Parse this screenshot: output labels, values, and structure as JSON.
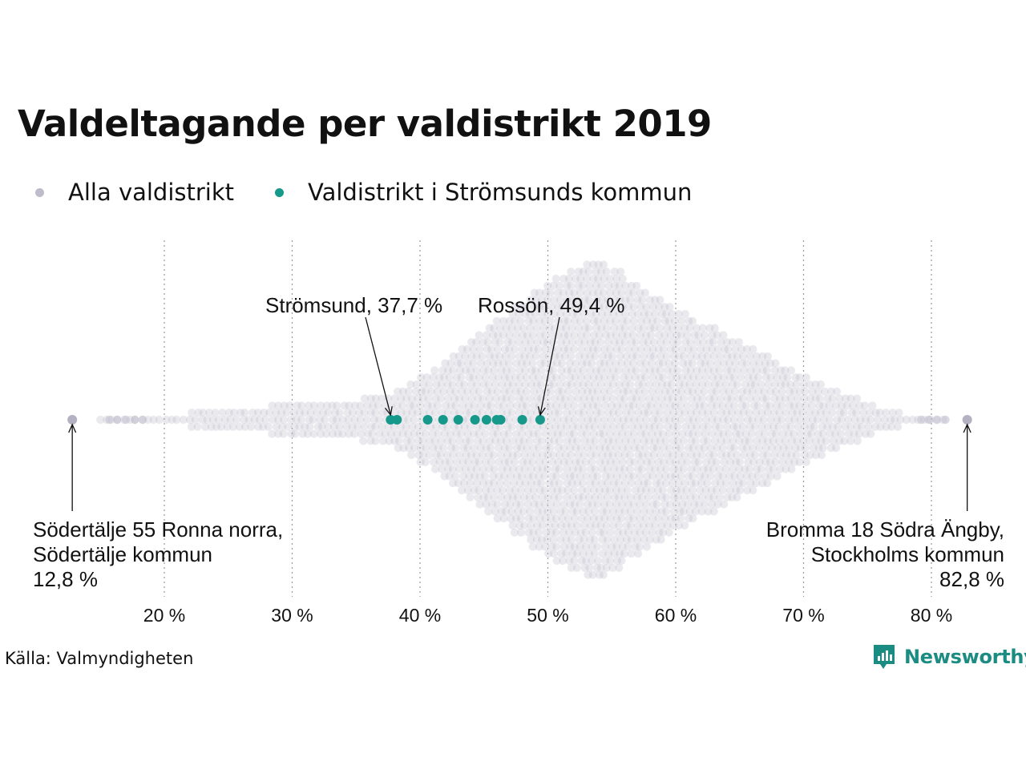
{
  "title": "Valdeltagande per valdistrikt 2019",
  "legend": [
    {
      "label": "Alla valdistrikt",
      "color": "#bdbccb"
    },
    {
      "label": "Valdistrikt i Strömsunds kommun",
      "color": "#16988b"
    }
  ],
  "annotations": {
    "stromsund": "Strömsund, 37,7 %",
    "rosson": "Rossön, 49,4 %",
    "min": {
      "line1": "Södertälje 55 Ronna norra,",
      "line2": "Södertälje kommun",
      "line3": "12,8 %"
    },
    "max": {
      "line1": "Bromma 18 Södra Ängby,",
      "line2": "Stockholms kommun",
      "line3": "82,8 %"
    }
  },
  "source": "Källa: Valmyndigheten",
  "brand": {
    "name": "Newsworthy",
    "icon": "newsworthy-logo-icon",
    "color": "#1a8c82"
  },
  "chart_data": {
    "type": "scatter",
    "subtype": "beeswarm",
    "x_ticks": [
      20,
      30,
      40,
      50,
      60,
      70,
      80
    ],
    "x_tick_labels": [
      "20 %",
      "30 %",
      "40 %",
      "50 %",
      "60 %",
      "70 %",
      "80 %"
    ],
    "xlim": [
      12.8,
      82.8
    ],
    "grid": "vertical dotted",
    "legend_position": "top-left",
    "series": [
      {
        "name": "Alla valdistrikt",
        "color": "#bdbccb",
        "min": 12.8,
        "max": 82.8,
        "peak_x": 53.9,
        "distribution_density": [
          [
            12.8,
            0
          ],
          [
            15,
            0.002
          ],
          [
            17,
            0.01
          ],
          [
            19,
            0.02
          ],
          [
            20,
            0.03
          ],
          [
            22,
            0.045
          ],
          [
            24,
            0.06
          ],
          [
            26,
            0.075
          ],
          [
            28,
            0.085
          ],
          [
            30,
            0.095
          ],
          [
            32,
            0.1
          ],
          [
            34,
            0.12
          ],
          [
            36,
            0.14
          ],
          [
            38,
            0.17
          ],
          [
            40,
            0.26
          ],
          [
            42,
            0.38
          ],
          [
            44,
            0.5
          ],
          [
            46,
            0.62
          ],
          [
            48,
            0.74
          ],
          [
            50,
            0.85
          ],
          [
            52,
            0.94
          ],
          [
            54,
            1.0
          ],
          [
            56,
            0.88
          ],
          [
            58,
            0.78
          ],
          [
            60,
            0.68
          ],
          [
            62,
            0.6
          ],
          [
            64,
            0.52
          ],
          [
            66,
            0.44
          ],
          [
            68,
            0.36
          ],
          [
            70,
            0.27
          ],
          [
            72,
            0.2
          ],
          [
            74,
            0.14
          ],
          [
            76,
            0.08
          ],
          [
            77,
            0.05
          ],
          [
            78,
            0.025
          ],
          [
            79,
            0.015
          ],
          [
            80,
            0.008
          ],
          [
            81,
            0.004
          ],
          [
            82.8,
            0
          ]
        ]
      },
      {
        "name": "Valdistrikt i Strömsunds kommun",
        "color": "#16988b",
        "values": [
          37.7,
          38.2,
          40.6,
          41.8,
          43.0,
          44.3,
          45.2,
          46.0,
          46.3,
          48.0,
          49.4
        ]
      }
    ],
    "highlighted_points": [
      {
        "label": "Strömsund",
        "value": 37.7
      },
      {
        "label": "Rossön",
        "value": 49.4
      },
      {
        "label": "Södertälje 55 Ronna norra, Södertälje kommun",
        "value": 12.8
      },
      {
        "label": "Bromma 18 Södra Ängby, Stockholms kommun",
        "value": 82.8
      }
    ]
  }
}
